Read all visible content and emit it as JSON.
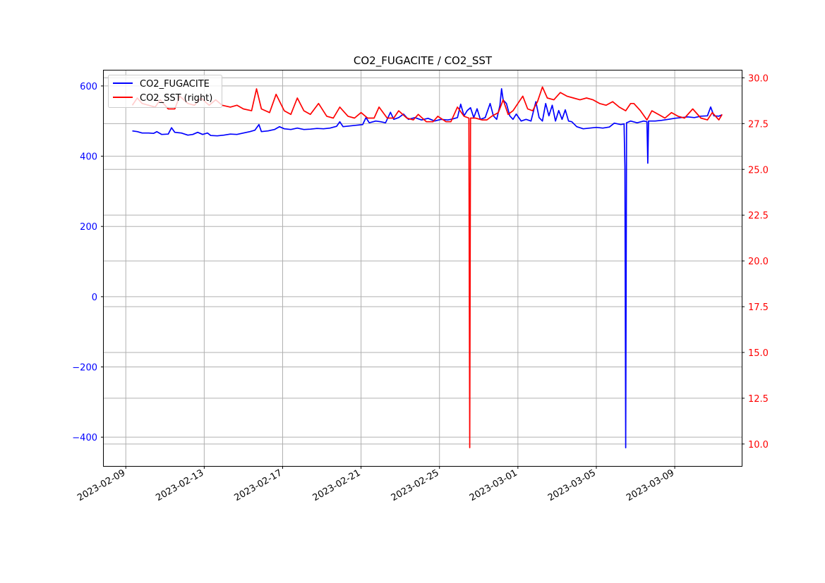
{
  "chart_data": {
    "type": "line",
    "title": "CO2_FUGACITE / CO2_SST",
    "xlabel": "",
    "ylabel_left": "",
    "ylabel_right": "",
    "grid": true,
    "legend_position": "top-left",
    "x_ticks": [
      "2023-02-09",
      "2023-02-13",
      "2023-02-17",
      "2023-02-21",
      "2023-02-25",
      "2023-03-01",
      "2023-03-05",
      "2023-03-09"
    ],
    "y_left_ticks": [
      -400,
      -200,
      0,
      200,
      400,
      600
    ],
    "y_right_ticks": [
      10.0,
      12.5,
      15.0,
      17.5,
      20.0,
      22.5,
      25.0,
      27.5,
      30.0
    ],
    "y_left_tick_labels": [
      "−400",
      "−200",
      "0",
      "200",
      "400",
      "600"
    ],
    "y_right_tick_labels": [
      "10.0",
      "12.5",
      "15.0",
      "17.5",
      "20.0",
      "22.5",
      "25.0",
      "27.5",
      "30.0"
    ],
    "x_range": [
      "2023-02-07T21:00",
      "2023-03-12T10:00"
    ],
    "ylim_left": [
      -482,
      644
    ],
    "ylim_right": [
      8.8,
      30.4
    ],
    "colors": {
      "left_axis": "#0000ff",
      "right_axis": "#ff0000",
      "grid": "#b0b0b0"
    },
    "series": [
      {
        "name": "CO2_FUGACITE",
        "axis": "left",
        "color": "#0000ff",
        "points": [
          [
            "2023-02-09T08:00",
            472
          ],
          [
            "2023-02-09T14:00",
            470
          ],
          [
            "2023-02-09T20:00",
            466
          ],
          [
            "2023-02-10T04:00",
            466
          ],
          [
            "2023-02-10T10:00",
            465
          ],
          [
            "2023-02-10T14:00",
            470
          ],
          [
            "2023-02-10T20:00",
            462
          ],
          [
            "2023-02-11T04:00",
            463
          ],
          [
            "2023-02-11T08:00",
            481
          ],
          [
            "2023-02-11T12:00",
            468
          ],
          [
            "2023-02-11T20:00",
            466
          ],
          [
            "2023-02-12T04:00",
            460
          ],
          [
            "2023-02-12T10:00",
            462
          ],
          [
            "2023-02-12T16:00",
            468
          ],
          [
            "2023-02-12T22:00",
            462
          ],
          [
            "2023-02-13T04:00",
            466
          ],
          [
            "2023-02-13T08:00",
            459
          ],
          [
            "2023-02-13T16:00",
            458
          ],
          [
            "2023-02-14T00:00",
            460
          ],
          [
            "2023-02-14T08:00",
            463
          ],
          [
            "2023-02-14T16:00",
            462
          ],
          [
            "2023-02-15T00:00",
            466
          ],
          [
            "2023-02-15T08:00",
            470
          ],
          [
            "2023-02-15T14:00",
            474
          ],
          [
            "2023-02-15T19:00",
            490
          ],
          [
            "2023-02-15T22:00",
            470
          ],
          [
            "2023-02-16T06:00",
            472
          ],
          [
            "2023-02-16T14:00",
            476
          ],
          [
            "2023-02-16T20:00",
            484
          ],
          [
            "2023-02-17T02:00",
            478
          ],
          [
            "2023-02-17T10:00",
            476
          ],
          [
            "2023-02-17T18:00",
            480
          ],
          [
            "2023-02-18T02:00",
            476
          ],
          [
            "2023-02-18T10:00",
            477
          ],
          [
            "2023-02-18T18:00",
            479
          ],
          [
            "2023-02-19T02:00",
            478
          ],
          [
            "2023-02-19T10:00",
            480
          ],
          [
            "2023-02-19T18:00",
            485
          ],
          [
            "2023-02-19T22:00",
            498
          ],
          [
            "2023-02-20T02:00",
            484
          ],
          [
            "2023-02-20T10:00",
            486
          ],
          [
            "2023-02-20T18:00",
            488
          ],
          [
            "2023-02-21T02:00",
            490
          ],
          [
            "2023-02-21T06:00",
            510
          ],
          [
            "2023-02-21T10:00",
            495
          ],
          [
            "2023-02-21T18:00",
            500
          ],
          [
            "2023-02-22T00:00",
            498
          ],
          [
            "2023-02-22T06:00",
            495
          ],
          [
            "2023-02-22T12:00",
            525
          ],
          [
            "2023-02-22T16:00",
            505
          ],
          [
            "2023-02-22T22:00",
            510
          ],
          [
            "2023-02-23T04:00",
            520
          ],
          [
            "2023-02-23T10:00",
            505
          ],
          [
            "2023-02-23T18:00",
            510
          ],
          [
            "2023-02-24T02:00",
            503
          ],
          [
            "2023-02-24T10:00",
            508
          ],
          [
            "2023-02-24T18:00",
            500
          ],
          [
            "2023-02-25T02:00",
            505
          ],
          [
            "2023-02-25T10:00",
            503
          ],
          [
            "2023-02-25T16:00",
            506
          ],
          [
            "2023-02-25T22:00",
            510
          ],
          [
            "2023-02-26T02:00",
            548
          ],
          [
            "2023-02-26T06:00",
            515
          ],
          [
            "2023-02-26T10:00",
            530
          ],
          [
            "2023-02-26T14:00",
            538
          ],
          [
            "2023-02-26T18:00",
            510
          ],
          [
            "2023-02-26T22:00",
            535
          ],
          [
            "2023-02-27T02:00",
            505
          ],
          [
            "2023-02-27T08:00",
            510
          ],
          [
            "2023-02-27T14:00",
            550
          ],
          [
            "2023-02-27T18:00",
            515
          ],
          [
            "2023-02-27T22:00",
            505
          ],
          [
            "2023-02-28T02:00",
            545
          ],
          [
            "2023-02-28T04:00",
            592
          ],
          [
            "2023-02-28T06:00",
            560
          ],
          [
            "2023-02-28T10:00",
            550
          ],
          [
            "2023-02-28T14:00",
            515
          ],
          [
            "2023-02-28T18:00",
            505
          ],
          [
            "2023-02-28T22:00",
            520
          ],
          [
            "2023-03-01T04:00",
            500
          ],
          [
            "2023-03-01T10:00",
            505
          ],
          [
            "2023-03-01T16:00",
            500
          ],
          [
            "2023-03-01T22:00",
            555
          ],
          [
            "2023-03-02T02:00",
            510
          ],
          [
            "2023-03-02T06:00",
            500
          ],
          [
            "2023-03-02T10:00",
            550
          ],
          [
            "2023-03-02T14:00",
            515
          ],
          [
            "2023-03-02T18:00",
            545
          ],
          [
            "2023-03-02T22:00",
            500
          ],
          [
            "2023-03-03T02:00",
            530
          ],
          [
            "2023-03-03T06:00",
            505
          ],
          [
            "2023-03-03T10:00",
            532
          ],
          [
            "2023-03-03T14:00",
            500
          ],
          [
            "2023-03-03T18:00",
            498
          ],
          [
            "2023-03-04T00:00",
            484
          ],
          [
            "2023-03-04T08:00",
            478
          ],
          [
            "2023-03-04T16:00",
            480
          ],
          [
            "2023-03-05T00:00",
            482
          ],
          [
            "2023-03-05T08:00",
            480
          ],
          [
            "2023-03-05T16:00",
            483
          ],
          [
            "2023-03-05T22:00",
            494
          ],
          [
            "2023-03-06T06:00",
            490
          ],
          [
            "2023-03-06T10:00",
            492
          ],
          [
            "2023-03-06T11:00",
            370
          ],
          [
            "2023-03-06T12:00",
            -430
          ],
          [
            "2023-03-06T13:00",
            495
          ],
          [
            "2023-03-06T18:00",
            500
          ],
          [
            "2023-03-07T02:00",
            495
          ],
          [
            "2023-03-07T10:00",
            500
          ],
          [
            "2023-03-07T14:00",
            498
          ],
          [
            "2023-03-07T15:00",
            380
          ],
          [
            "2023-03-07T16:00",
            500
          ],
          [
            "2023-03-08T00:00",
            500
          ],
          [
            "2023-03-08T08:00",
            502
          ],
          [
            "2023-03-08T16:00",
            505
          ],
          [
            "2023-03-09T00:00",
            508
          ],
          [
            "2023-03-09T08:00",
            510
          ],
          [
            "2023-03-09T16:00",
            512
          ],
          [
            "2023-03-10T00:00",
            510
          ],
          [
            "2023-03-10T08:00",
            514
          ],
          [
            "2023-03-10T16:00",
            515
          ],
          [
            "2023-03-10T20:00",
            540
          ],
          [
            "2023-03-11T00:00",
            515
          ],
          [
            "2023-03-11T06:00",
            514
          ],
          [
            "2023-03-11T10:00",
            518
          ]
        ]
      },
      {
        "name": "CO2_SST (right)",
        "axis": "right",
        "color": "#ff0000",
        "points": [
          [
            "2023-02-09T08:00",
            28.5
          ],
          [
            "2023-02-09T14:00",
            28.9
          ],
          [
            "2023-02-09T20:00",
            28.6
          ],
          [
            "2023-02-10T04:00",
            28.5
          ],
          [
            "2023-02-10T12:00",
            28.4
          ],
          [
            "2023-02-10T18:00",
            28.8
          ],
          [
            "2023-02-11T04:00",
            28.3
          ],
          [
            "2023-02-11T12:00",
            28.3
          ],
          [
            "2023-02-11T18:00",
            29.0
          ],
          [
            "2023-02-12T04:00",
            28.6
          ],
          [
            "2023-02-12T12:00",
            28.5
          ],
          [
            "2023-02-12T20:00",
            28.9
          ],
          [
            "2023-02-13T06:00",
            28.5
          ],
          [
            "2023-02-13T14:00",
            28.8
          ],
          [
            "2023-02-13T22:00",
            28.5
          ],
          [
            "2023-02-14T08:00",
            28.4
          ],
          [
            "2023-02-14T16:00",
            28.5
          ],
          [
            "2023-02-15T00:00",
            28.3
          ],
          [
            "2023-02-15T10:00",
            28.2
          ],
          [
            "2023-02-15T16:00",
            29.4
          ],
          [
            "2023-02-15T22:00",
            28.3
          ],
          [
            "2023-02-16T08:00",
            28.1
          ],
          [
            "2023-02-16T16:00",
            29.1
          ],
          [
            "2023-02-17T02:00",
            28.2
          ],
          [
            "2023-02-17T10:00",
            28.0
          ],
          [
            "2023-02-17T18:00",
            28.9
          ],
          [
            "2023-02-18T02:00",
            28.2
          ],
          [
            "2023-02-18T10:00",
            28.0
          ],
          [
            "2023-02-18T20:00",
            28.6
          ],
          [
            "2023-02-19T06:00",
            27.9
          ],
          [
            "2023-02-19T14:00",
            27.8
          ],
          [
            "2023-02-19T22:00",
            28.4
          ],
          [
            "2023-02-20T08:00",
            27.9
          ],
          [
            "2023-02-20T16:00",
            27.8
          ],
          [
            "2023-02-21T00:00",
            28.1
          ],
          [
            "2023-02-21T08:00",
            27.8
          ],
          [
            "2023-02-21T16:00",
            27.8
          ],
          [
            "2023-02-21T22:00",
            28.4
          ],
          [
            "2023-02-22T08:00",
            27.8
          ],
          [
            "2023-02-22T16:00",
            27.8
          ],
          [
            "2023-02-22T22:00",
            28.2
          ],
          [
            "2023-02-23T08:00",
            27.8
          ],
          [
            "2023-02-23T16:00",
            27.7
          ],
          [
            "2023-02-23T22:00",
            28.0
          ],
          [
            "2023-02-24T08:00",
            27.6
          ],
          [
            "2023-02-24T16:00",
            27.6
          ],
          [
            "2023-02-24T22:00",
            27.9
          ],
          [
            "2023-02-25T08:00",
            27.6
          ],
          [
            "2023-02-25T14:00",
            27.6
          ],
          [
            "2023-02-25T22:00",
            28.4
          ],
          [
            "2023-02-26T06:00",
            27.9
          ],
          [
            "2023-02-26T12:00",
            27.8
          ],
          [
            "2023-02-26T13:00",
            9.8
          ],
          [
            "2023-02-26T14:00",
            27.8
          ],
          [
            "2023-02-26T20:00",
            27.8
          ],
          [
            "2023-02-27T04:00",
            27.7
          ],
          [
            "2023-02-27T10:00",
            27.7
          ],
          [
            "2023-02-27T16:00",
            27.9
          ],
          [
            "2023-02-28T00:00",
            28.1
          ],
          [
            "2023-02-28T06:00",
            28.8
          ],
          [
            "2023-02-28T12:00",
            28.0
          ],
          [
            "2023-02-28T18:00",
            28.2
          ],
          [
            "2023-03-01T00:00",
            28.6
          ],
          [
            "2023-03-01T06:00",
            29.0
          ],
          [
            "2023-03-01T12:00",
            28.3
          ],
          [
            "2023-03-01T18:00",
            28.2
          ],
          [
            "2023-03-02T00:00",
            28.7
          ],
          [
            "2023-03-02T06:00",
            29.5
          ],
          [
            "2023-03-02T12:00",
            28.9
          ],
          [
            "2023-03-02T20:00",
            28.8
          ],
          [
            "2023-03-03T04:00",
            29.2
          ],
          [
            "2023-03-03T12:00",
            29.0
          ],
          [
            "2023-03-03T20:00",
            28.9
          ],
          [
            "2023-03-04T04:00",
            28.8
          ],
          [
            "2023-03-04T12:00",
            28.9
          ],
          [
            "2023-03-04T20:00",
            28.8
          ],
          [
            "2023-03-05T04:00",
            28.6
          ],
          [
            "2023-03-05T12:00",
            28.5
          ],
          [
            "2023-03-05T20:00",
            28.7
          ],
          [
            "2023-03-06T04:00",
            28.4
          ],
          [
            "2023-03-06T12:00",
            28.2
          ],
          [
            "2023-03-06T18:00",
            28.6
          ],
          [
            "2023-03-06T22:00",
            28.6
          ],
          [
            "2023-03-07T06:00",
            28.2
          ],
          [
            "2023-03-07T14:00",
            27.7
          ],
          [
            "2023-03-07T20:00",
            28.2
          ],
          [
            "2023-03-08T04:00",
            28.0
          ],
          [
            "2023-03-08T12:00",
            27.8
          ],
          [
            "2023-03-08T20:00",
            28.1
          ],
          [
            "2023-03-09T04:00",
            27.9
          ],
          [
            "2023-03-09T12:00",
            27.8
          ],
          [
            "2023-03-09T22:00",
            28.3
          ],
          [
            "2023-03-10T08:00",
            27.8
          ],
          [
            "2023-03-10T16:00",
            27.7
          ],
          [
            "2023-03-10T22:00",
            28.1
          ],
          [
            "2023-03-11T06:00",
            27.7
          ],
          [
            "2023-03-11T10:00",
            28.0
          ]
        ]
      }
    ]
  }
}
